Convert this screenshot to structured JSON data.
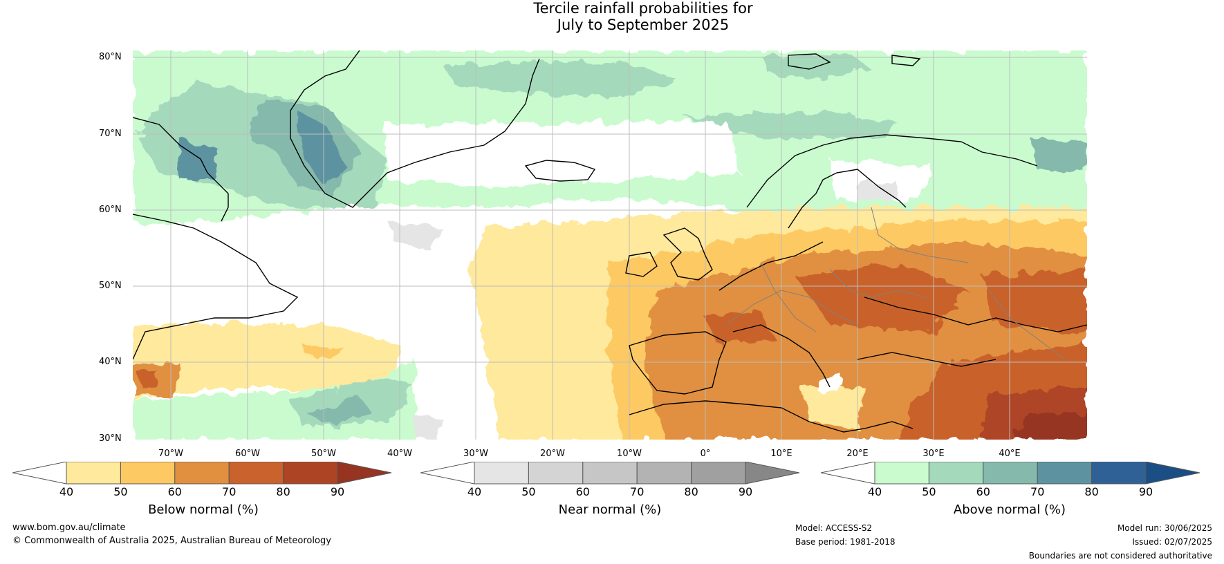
{
  "title": {
    "line1": "Tercile rainfall probabilities for",
    "line2": "July to September 2025"
  },
  "map": {
    "lat_labels": [
      "80°N",
      "70°N",
      "60°N",
      "50°N",
      "40°N",
      "30°N"
    ],
    "lon_labels": [
      "70°W",
      "60°W",
      "50°W",
      "40°W",
      "30°W",
      "20°W",
      "10°W",
      "0°",
      "10°E",
      "20°E",
      "30°E",
      "40°E"
    ],
    "colors": {
      "ocean_background": "#ffffff",
      "gridline": "#bdbdbd",
      "coastline": "#000000",
      "border": "#808080"
    }
  },
  "colorbars": [
    {
      "name": "below",
      "title": "Below normal (%)",
      "ticks": [
        "40",
        "50",
        "60",
        "70",
        "80",
        "90"
      ],
      "colors": [
        "#ffffff",
        "#fee99c",
        "#fdc963",
        "#e0903f",
        "#c9622c",
        "#ad4525",
        "#963421"
      ]
    },
    {
      "name": "near",
      "title": "Near normal (%)",
      "ticks": [
        "40",
        "50",
        "60",
        "70",
        "80",
        "90"
      ],
      "colors": [
        "#ffffff",
        "#e5e5e5",
        "#d4d4d4",
        "#c6c6c6",
        "#b3b3b3",
        "#a0a0a0",
        "#878787"
      ]
    },
    {
      "name": "above",
      "title": "Above normal (%)",
      "ticks": [
        "40",
        "50",
        "60",
        "70",
        "80",
        "90"
      ],
      "colors": [
        "#ffffff",
        "#c9fbcf",
        "#a5d9bc",
        "#84b9ab",
        "#5d93a0",
        "#2f6196",
        "#1c4e86"
      ]
    }
  ],
  "footer": {
    "website": "www.bom.gov.au/climate",
    "copyright": "© Commonwealth of Australia 2025, Australian Bureau of Meteorology",
    "model": "Model: ACCESS-S2",
    "base_period": "Base period: 1981-2018",
    "model_run": "Model run: 30/06/2025",
    "issued": "Issued: 02/07/2025",
    "disclaimer": "Boundaries are not considered authoritative"
  }
}
